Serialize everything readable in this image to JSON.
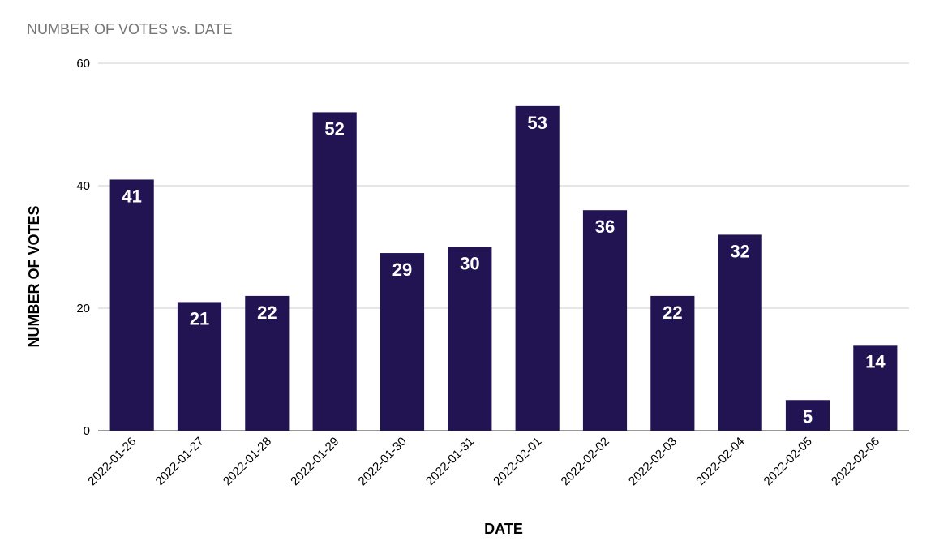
{
  "chart_data": {
    "type": "bar",
    "title": "NUMBER OF VOTES vs. DATE",
    "xlabel": "DATE",
    "ylabel": "NUMBER OF VOTES",
    "categories": [
      "2022-01-26",
      "2022-01-27",
      "2022-01-28",
      "2022-01-29",
      "2022-01-30",
      "2022-01-31",
      "2022-02-01",
      "2022-02-02",
      "2022-02-03",
      "2022-02-04",
      "2022-02-05",
      "2022-02-06"
    ],
    "values": [
      41,
      21,
      22,
      52,
      29,
      30,
      53,
      36,
      22,
      32,
      5,
      14
    ],
    "ylim": [
      0,
      60
    ],
    "yticks": [
      0,
      20,
      40,
      60
    ],
    "grid": true,
    "legend": "none",
    "colors": {
      "bar": "#221452",
      "grid": "#cccccc",
      "title": "#757575",
      "data_label": "#ffffff"
    }
  }
}
